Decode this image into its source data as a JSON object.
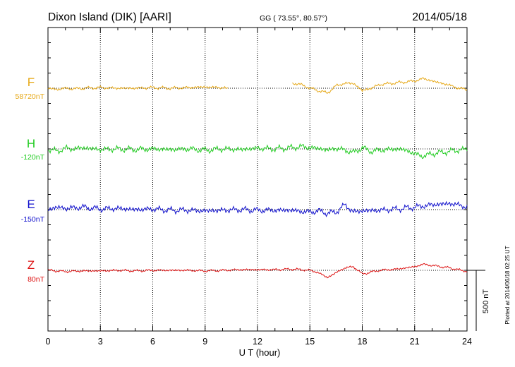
{
  "header": {
    "station": "Dixon Island (DIK)  [AARI]",
    "coords": "GG ( 73.55°,  80.57°)",
    "date": "2014/05/18"
  },
  "axis": {
    "xlabel": "U T (hour)",
    "ticks": [
      "0",
      "3",
      "6",
      "9",
      "12",
      "15",
      "18",
      "21",
      "24"
    ],
    "xlim": [
      0,
      24
    ]
  },
  "scale_label": "500 nT",
  "plotted_note": "Plotted at 2014/06/18 02:25 UT",
  "colors": {
    "F": "#e6a817",
    "H": "#22cc22",
    "E": "#1010cc",
    "Z": "#dd1111",
    "frame": "#000000",
    "grid": "#000000"
  },
  "chart_data": {
    "type": "line",
    "x_unit": "hour UT",
    "y_unit": "nT (offset from baseline)",
    "scale_nT": 500,
    "series": [
      {
        "name": "F",
        "baseline": "58720nT",
        "color": "#e6a817",
        "points": [
          [
            0,
            0
          ],
          [
            0.5,
            -10
          ],
          [
            1,
            0
          ],
          [
            1.5,
            -5
          ],
          [
            2,
            0
          ],
          [
            3,
            5
          ],
          [
            4,
            0
          ],
          [
            5,
            0
          ],
          [
            6,
            5
          ],
          [
            7,
            0
          ],
          [
            8,
            5
          ],
          [
            9,
            10
          ],
          [
            10,
            5
          ],
          [
            10.3,
            5
          ],
          null,
          [
            14,
            40
          ],
          [
            14.5,
            30
          ],
          [
            15,
            0
          ],
          [
            15.5,
            -20
          ],
          [
            16,
            -40
          ],
          [
            16.5,
            20
          ],
          [
            17,
            40
          ],
          [
            17.5,
            40
          ],
          [
            18,
            -20
          ],
          [
            18.5,
            0
          ],
          [
            19,
            30
          ],
          [
            20,
            45
          ],
          [
            21,
            60
          ],
          [
            21.5,
            80
          ],
          [
            22,
            60
          ],
          [
            23,
            25
          ],
          [
            23.5,
            0
          ],
          [
            24,
            -10
          ]
        ]
      },
      {
        "name": "H",
        "baseline": "-120nT",
        "color": "#22cc22",
        "points": [
          [
            0,
            0
          ],
          [
            0.5,
            -20
          ],
          [
            1,
            5
          ],
          [
            1.5,
            0
          ],
          [
            2,
            10
          ],
          [
            3,
            -5
          ],
          [
            4,
            0
          ],
          [
            5,
            -5
          ],
          [
            6,
            0
          ],
          [
            7,
            -5
          ],
          [
            8,
            0
          ],
          [
            9,
            -10
          ],
          [
            10,
            0
          ],
          [
            11,
            -5
          ],
          [
            12,
            5
          ],
          [
            13,
            0
          ],
          [
            14,
            10
          ],
          [
            14.5,
            20
          ],
          [
            15,
            10
          ],
          [
            15.5,
            5
          ],
          [
            16,
            -10
          ],
          [
            16.5,
            5
          ],
          [
            17,
            -10
          ],
          [
            17.5,
            -30
          ],
          [
            18,
            10
          ],
          [
            18.5,
            -20
          ],
          [
            19,
            -10
          ],
          [
            20,
            0
          ],
          [
            20.5,
            -10
          ],
          [
            21,
            -40
          ],
          [
            21.5,
            -60
          ],
          [
            22,
            -40
          ],
          [
            23,
            -20
          ],
          [
            24,
            0
          ]
        ]
      },
      {
        "name": "E",
        "baseline": "-150nT",
        "color": "#1010cc",
        "points": [
          [
            0,
            0
          ],
          [
            0.5,
            20
          ],
          [
            1,
            10
          ],
          [
            2,
            20
          ],
          [
            3,
            5
          ],
          [
            4,
            10
          ],
          [
            5,
            0
          ],
          [
            6,
            5
          ],
          [
            7,
            -5
          ],
          [
            8,
            -5
          ],
          [
            9,
            -10
          ],
          [
            10,
            -5
          ],
          [
            11,
            0
          ],
          [
            12,
            -5
          ],
          [
            13,
            -5
          ],
          [
            14,
            -5
          ],
          [
            14.5,
            -15
          ],
          [
            15,
            -20
          ],
          [
            15.5,
            -10
          ],
          [
            16,
            -30
          ],
          [
            16.5,
            -20
          ],
          [
            17,
            40
          ],
          [
            17.5,
            -20
          ],
          [
            18,
            -10
          ],
          [
            19,
            -5
          ],
          [
            20,
            5
          ],
          [
            21,
            20
          ],
          [
            22,
            40
          ],
          [
            23,
            50
          ],
          [
            23.5,
            40
          ],
          [
            24,
            20
          ]
        ]
      },
      {
        "name": "Z",
        "baseline": "80nT",
        "color": "#dd1111",
        "points": [
          [
            0,
            0
          ],
          [
            1,
            -10
          ],
          [
            2,
            -5
          ],
          [
            3,
            -5
          ],
          [
            4,
            0
          ],
          [
            5,
            -5
          ],
          [
            6,
            0
          ],
          [
            7,
            0
          ],
          [
            8,
            0
          ],
          [
            9,
            -5
          ],
          [
            10,
            0
          ],
          [
            11,
            5
          ],
          [
            12,
            5
          ],
          [
            13,
            5
          ],
          [
            14,
            10
          ],
          [
            15,
            0
          ],
          [
            15.5,
            -20
          ],
          [
            16,
            -60
          ],
          [
            16.5,
            -20
          ],
          [
            17,
            20
          ],
          [
            17.5,
            30
          ],
          [
            18,
            -30
          ],
          [
            19,
            0
          ],
          [
            20,
            10
          ],
          [
            21,
            30
          ],
          [
            21.5,
            50
          ],
          [
            22,
            40
          ],
          [
            23,
            20
          ],
          [
            24,
            -10
          ]
        ]
      }
    ]
  }
}
